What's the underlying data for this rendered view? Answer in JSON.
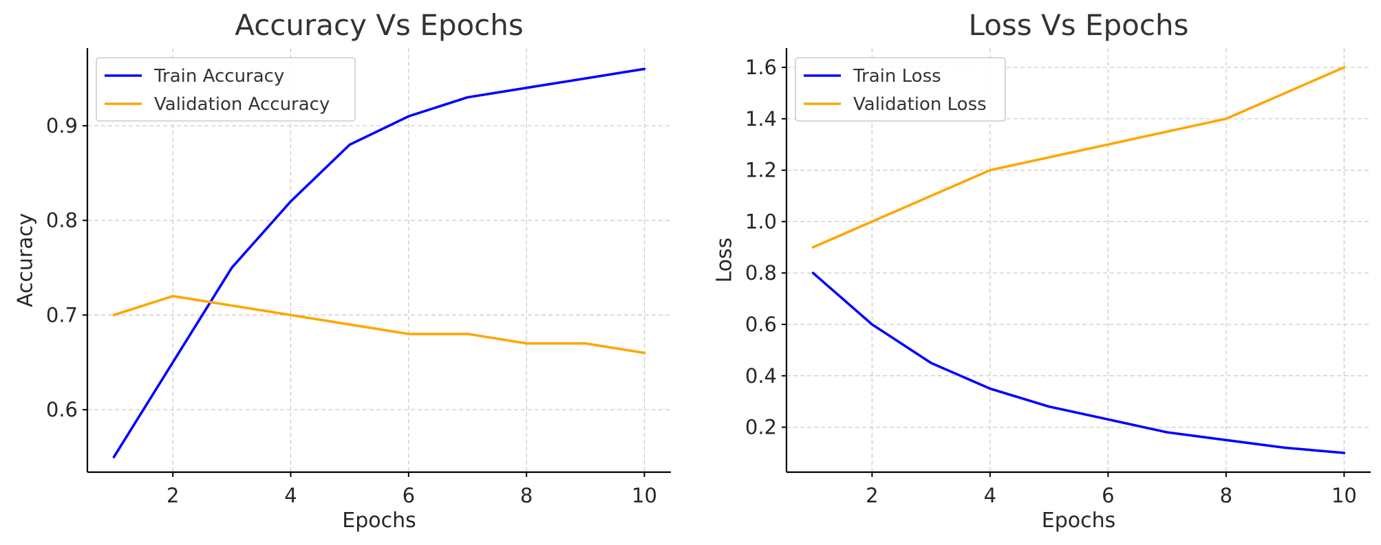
{
  "chart_data": [
    {
      "type": "line",
      "title": "Accuracy Vs Epochs",
      "xlabel": "Epochs",
      "ylabel": "Accuracy",
      "xlim": [
        0.55,
        10.45
      ],
      "ylim": [
        0.534,
        0.982
      ],
      "xticks": [
        2,
        4,
        6,
        8,
        10
      ],
      "xtick_labels": [
        "2",
        "4",
        "6",
        "8",
        "10"
      ],
      "yticks": [
        0.6,
        0.7,
        0.8,
        0.9
      ],
      "ytick_labels": [
        "0.6",
        "0.7",
        "0.8",
        "0.9"
      ],
      "grid": true,
      "legend_position": "top-left",
      "x": [
        1,
        2,
        3,
        4,
        5,
        6,
        7,
        8,
        9,
        10
      ],
      "series": [
        {
          "name": "Train Accuracy",
          "color": "#0000ff",
          "values": [
            0.55,
            0.65,
            0.75,
            0.82,
            0.88,
            0.91,
            0.93,
            0.94,
            0.95,
            0.96
          ]
        },
        {
          "name": "Validation Accuracy",
          "color": "#ffa500",
          "values": [
            0.7,
            0.72,
            0.71,
            0.7,
            0.69,
            0.68,
            0.68,
            0.67,
            0.67,
            0.66
          ]
        }
      ]
    },
    {
      "type": "line",
      "title": "Loss Vs Epochs",
      "xlabel": "Epochs",
      "ylabel": "Loss",
      "xlim": [
        0.55,
        10.45
      ],
      "ylim": [
        0.025,
        1.675
      ],
      "xticks": [
        2,
        4,
        6,
        8,
        10
      ],
      "xtick_labels": [
        "2",
        "4",
        "6",
        "8",
        "10"
      ],
      "yticks": [
        0.2,
        0.4,
        0.6,
        0.8,
        1.0,
        1.2,
        1.4,
        1.6
      ],
      "ytick_labels": [
        "0.2",
        "0.4",
        "0.6",
        "0.8",
        "1.0",
        "1.2",
        "1.4",
        "1.6"
      ],
      "grid": true,
      "legend_position": "top-left",
      "x": [
        1,
        2,
        3,
        4,
        5,
        6,
        7,
        8,
        9,
        10
      ],
      "series": [
        {
          "name": "Train Loss",
          "color": "#0000ff",
          "values": [
            0.8,
            0.6,
            0.45,
            0.35,
            0.28,
            0.23,
            0.18,
            0.15,
            0.12,
            0.1
          ]
        },
        {
          "name": "Validation Loss",
          "color": "#ffa500",
          "values": [
            0.9,
            1.0,
            1.1,
            1.2,
            1.25,
            1.3,
            1.35,
            1.4,
            1.5,
            1.6
          ]
        }
      ]
    }
  ]
}
